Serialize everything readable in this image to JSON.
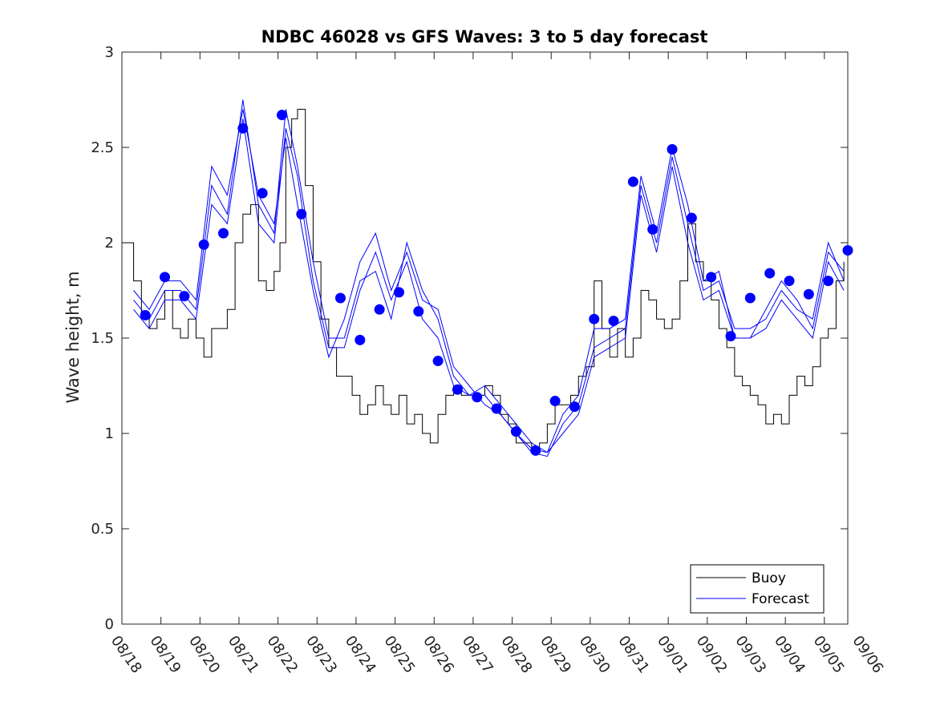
{
  "chart_data": {
    "type": "line",
    "title": "NDBC 46028 vs GFS Waves: 3 to 5 day forecast",
    "xlabel": "",
    "ylabel": "Wave height, m",
    "ylim": [
      0,
      3
    ],
    "xlim": [
      0,
      18.6
    ],
    "y_ticks": [
      "0",
      "0.5",
      "1",
      "1.5",
      "2",
      "2.5",
      "3"
    ],
    "y_tick_values": [
      0,
      0.5,
      1,
      1.5,
      2,
      2.5,
      3
    ],
    "x_ticks": [
      "08/18",
      "08/19",
      "08/20",
      "08/21",
      "08/22",
      "08/23",
      "08/24",
      "08/25",
      "08/26",
      "08/27",
      "08/28",
      "08/29",
      "08/30",
      "08/31",
      "09/01",
      "09/02",
      "09/03",
      "09/04",
      "09/05",
      "09/06"
    ],
    "x_tick_values": [
      0,
      1,
      2,
      3,
      4,
      5,
      6,
      7,
      8,
      9,
      10,
      11,
      12,
      13,
      14,
      15,
      16,
      17,
      18,
      19
    ],
    "legend": [
      "Buoy",
      "Forecast"
    ],
    "legend_position": "bottom-right",
    "colors": {
      "buoy": "#000000",
      "forecast": "#0000ff",
      "points": "#0000ff"
    },
    "buoy_series": {
      "name": "Buoy",
      "x": [
        0,
        0.3,
        0.5,
        0.7,
        0.9,
        1.1,
        1.3,
        1.5,
        1.7,
        1.9,
        2.1,
        2.3,
        2.5,
        2.7,
        2.9,
        3.1,
        3.3,
        3.5,
        3.7,
        3.9,
        4.05,
        4.2,
        4.35,
        4.5,
        4.7,
        4.9,
        5.1,
        5.3,
        5.5,
        5.7,
        5.9,
        6.1,
        6.3,
        6.5,
        6.7,
        6.9,
        7.1,
        7.3,
        7.5,
        7.7,
        7.9,
        8.1,
        8.3,
        8.5,
        8.7,
        8.9,
        9.1,
        9.3,
        9.5,
        9.7,
        9.9,
        10.1,
        10.3,
        10.5,
        10.7,
        10.9,
        11.1,
        11.3,
        11.5,
        11.7,
        11.9,
        12.1,
        12.3,
        12.5,
        12.7,
        12.9,
        13.1,
        13.3,
        13.5,
        13.7,
        13.9,
        14.1,
        14.3,
        14.5,
        14.7,
        14.9,
        15.1,
        15.3,
        15.5,
        15.7,
        15.9,
        16.1,
        16.3,
        16.5,
        16.7,
        16.9,
        17.1,
        17.3,
        17.5,
        17.7,
        17.9,
        18.1,
        18.3,
        18.5
      ],
      "values": [
        2.0,
        1.8,
        1.6,
        1.55,
        1.6,
        1.75,
        1.55,
        1.5,
        1.6,
        1.5,
        1.4,
        1.55,
        1.55,
        1.65,
        2.0,
        2.15,
        2.2,
        1.8,
        1.75,
        1.85,
        2.0,
        2.5,
        2.65,
        2.7,
        2.3,
        1.9,
        1.6,
        1.45,
        1.3,
        1.3,
        1.2,
        1.1,
        1.15,
        1.25,
        1.15,
        1.1,
        1.2,
        1.05,
        1.1,
        1.0,
        0.95,
        1.1,
        1.2,
        1.25,
        1.2,
        1.2,
        1.2,
        1.25,
        1.2,
        1.1,
        1.05,
        0.95,
        0.95,
        0.9,
        0.95,
        1.05,
        1.15,
        1.15,
        1.2,
        1.3,
        1.35,
        1.8,
        1.55,
        1.4,
        1.55,
        1.4,
        1.5,
        1.75,
        1.7,
        1.6,
        1.55,
        1.6,
        1.8,
        2.1,
        1.9,
        1.8,
        1.7,
        1.55,
        1.45,
        1.3,
        1.25,
        1.2,
        1.15,
        1.05,
        1.1,
        1.05,
        1.2,
        1.3,
        1.25,
        1.35,
        1.5,
        1.55,
        1.8,
        1.9
      ]
    },
    "forecast_series": [
      {
        "name": "Forecast",
        "x": [
          0.3,
          0.7,
          1.1,
          1.5,
          1.9,
          2.3,
          2.7,
          3.1,
          3.5,
          3.9,
          4.2,
          4.5,
          4.9,
          5.3,
          5.7,
          6.1,
          6.5,
          6.9,
          7.3,
          7.7,
          8.1,
          8.5,
          8.9,
          9.3,
          9.7,
          10.1,
          10.5,
          10.9,
          11.3,
          11.7,
          12.1,
          12.5,
          12.9,
          13.3,
          13.7,
          14.1,
          14.5,
          14.9,
          15.3,
          15.7,
          16.1,
          16.5,
          16.9,
          17.3,
          17.7,
          18.1,
          18.5
        ],
        "values": [
          1.7,
          1.6,
          1.75,
          1.75,
          1.65,
          2.3,
          2.15,
          2.75,
          2.2,
          2.05,
          2.7,
          2.4,
          1.9,
          1.5,
          1.5,
          1.8,
          1.85,
          1.6,
          2.0,
          1.75,
          1.6,
          1.3,
          1.2,
          1.25,
          1.15,
          1.05,
          0.95,
          0.9,
          1.1,
          1.2,
          1.55,
          1.55,
          1.6,
          2.35,
          2.05,
          2.5,
          2.2,
          1.8,
          1.85,
          1.5,
          1.5,
          1.65,
          1.8,
          1.7,
          1.55,
          1.95,
          1.85
        ]
      },
      {
        "name": "Forecast",
        "x": [
          0.3,
          0.7,
          1.1,
          1.5,
          1.9,
          2.3,
          2.7,
          3.1,
          3.5,
          3.9,
          4.2,
          4.5,
          4.9,
          5.3,
          5.7,
          6.1,
          6.5,
          6.9,
          7.3,
          7.7,
          8.1,
          8.5,
          8.9,
          9.3,
          9.7,
          10.1,
          10.5,
          10.9,
          11.3,
          11.7,
          12.1,
          12.5,
          12.9,
          13.3,
          13.7,
          14.1,
          14.5,
          14.9,
          15.3,
          15.7,
          16.1,
          16.5,
          16.9,
          17.3,
          17.7,
          18.1,
          18.5
        ],
        "values": [
          1.65,
          1.55,
          1.7,
          1.7,
          1.6,
          2.2,
          2.1,
          2.65,
          2.1,
          2.0,
          2.6,
          2.35,
          1.8,
          1.45,
          1.45,
          1.75,
          1.95,
          1.7,
          1.9,
          1.6,
          1.5,
          1.25,
          1.2,
          1.2,
          1.1,
          1.0,
          0.9,
          0.88,
          1.05,
          1.15,
          1.45,
          1.5,
          1.55,
          2.3,
          2.0,
          2.45,
          2.1,
          1.75,
          1.8,
          1.55,
          1.55,
          1.6,
          1.75,
          1.65,
          1.6,
          2.0,
          1.8
        ]
      },
      {
        "name": "Forecast",
        "x": [
          0.3,
          0.7,
          1.1,
          1.5,
          1.9,
          2.3,
          2.7,
          3.1,
          3.5,
          3.9,
          4.2,
          4.5,
          4.9,
          5.3,
          5.7,
          6.1,
          6.5,
          6.9,
          7.3,
          7.7,
          8.1,
          8.5,
          8.9,
          9.3,
          9.7,
          10.1,
          10.5,
          10.9,
          11.3,
          11.7,
          12.1,
          12.5,
          12.9,
          13.3,
          13.7,
          14.1,
          14.5,
          14.9,
          15.3,
          15.7,
          16.1,
          16.5,
          16.9,
          17.3,
          17.7,
          18.1,
          18.5
        ],
        "values": [
          1.75,
          1.65,
          1.8,
          1.8,
          1.7,
          2.4,
          2.25,
          2.7,
          2.25,
          2.1,
          2.55,
          2.2,
          1.75,
          1.4,
          1.6,
          1.9,
          2.05,
          1.75,
          1.95,
          1.7,
          1.65,
          1.35,
          1.25,
          1.15,
          1.1,
          1.0,
          0.92,
          0.9,
          1.0,
          1.1,
          1.4,
          1.45,
          1.5,
          2.25,
          1.95,
          2.4,
          2.0,
          1.7,
          1.75,
          1.5,
          1.5,
          1.55,
          1.7,
          1.6,
          1.5,
          1.9,
          1.75
        ]
      }
    ],
    "forecast_points": {
      "x": [
        0.6,
        1.1,
        1.6,
        2.1,
        2.6,
        3.1,
        3.6,
        4.1,
        4.6,
        5.6,
        6.1,
        6.6,
        7.1,
        7.6,
        8.1,
        8.6,
        9.1,
        9.6,
        10.1,
        10.6,
        11.1,
        11.6,
        12.1,
        12.6,
        13.1,
        13.6,
        14.1,
        14.6,
        15.1,
        15.6,
        16.1,
        16.6,
        17.1,
        17.6,
        18.1,
        18.6
      ],
      "values": [
        1.62,
        1.82,
        1.72,
        1.99,
        2.05,
        2.6,
        2.26,
        2.67,
        2.15,
        1.71,
        1.49,
        1.65,
        1.74,
        1.64,
        1.38,
        1.23,
        1.19,
        1.13,
        1.01,
        0.91,
        1.17,
        1.14,
        1.6,
        1.59,
        2.32,
        2.07,
        2.49,
        2.13,
        1.82,
        1.51,
        1.71,
        1.84,
        1.8,
        1.73,
        1.8,
        1.96
      ]
    }
  }
}
